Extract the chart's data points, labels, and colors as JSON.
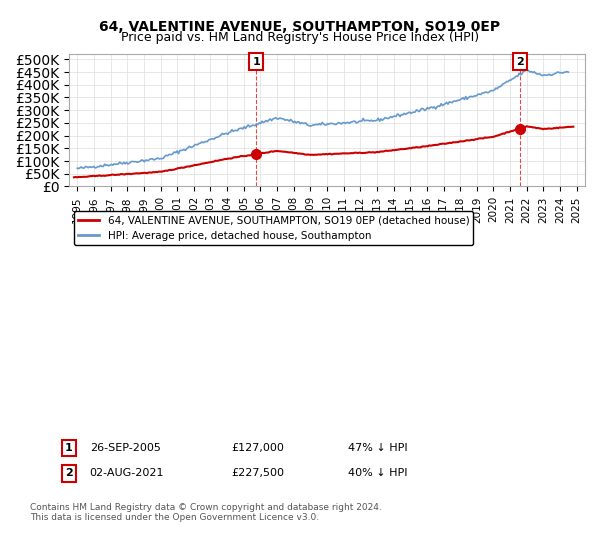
{
  "title": "64, VALENTINE AVENUE, SOUTHAMPTON, SO19 0EP",
  "subtitle": "Price paid vs. HM Land Registry's House Price Index (HPI)",
  "legend_entry1": "64, VALENTINE AVENUE, SOUTHAMPTON, SO19 0EP (detached house)",
  "legend_entry2": "HPI: Average price, detached house, Southampton",
  "annotation1_date": "26-SEP-2005",
  "annotation1_price": 127000,
  "annotation1_hpi": "47% ↓ HPI",
  "annotation2_date": "02-AUG-2021",
  "annotation2_price": 227500,
  "annotation2_hpi": "40% ↓ HPI",
  "footer": "Contains HM Land Registry data © Crown copyright and database right 2024.\nThis data is licensed under the Open Government Licence v3.0.",
  "hpi_color": "#6699cc",
  "price_color": "#cc0000",
  "annotation_vline_color": "#cc0000",
  "marker_color": "#cc0000",
  "ylim_max": 520000,
  "xlim_start": 1994.5,
  "xlim_end": 2025.5,
  "annotation1_year": 2005.75,
  "annotation2_year": 2021.58
}
